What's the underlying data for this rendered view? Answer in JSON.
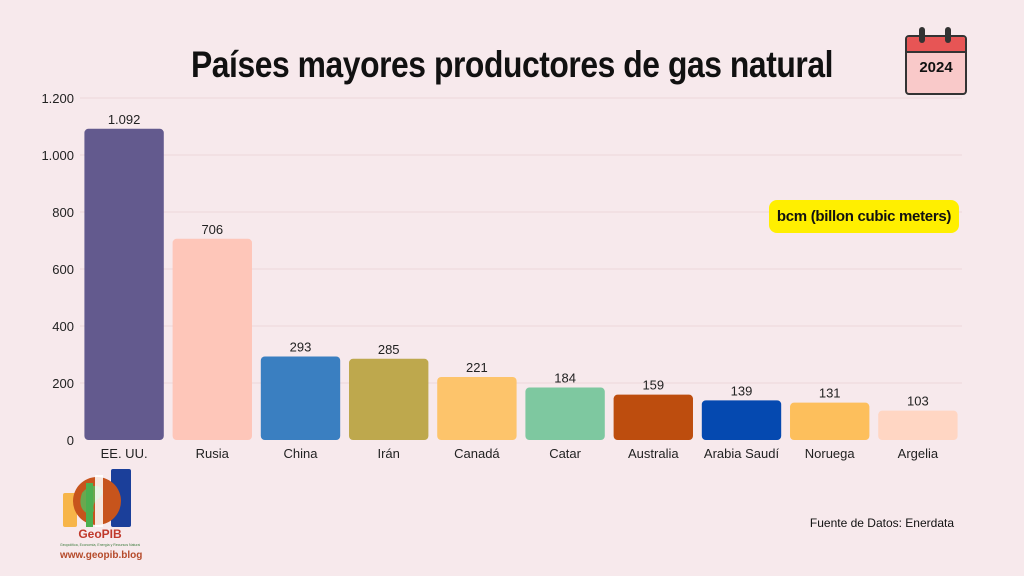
{
  "title": "Países mayores productores de gas natural",
  "year": "2024",
  "unit_label": "bcm (billon cubic meters)",
  "source": "Fuente de Datos: Enerdata",
  "logo": {
    "name": "GeoPIB",
    "tagline": "Geopolítica, Economía, Energía y Recursos Naturales",
    "url": "www.geopib.blog"
  },
  "chart_data": {
    "type": "bar",
    "title": "Países mayores productores de gas natural",
    "xlabel": "",
    "ylabel": "",
    "ylim": [
      0,
      1200
    ],
    "yticks": [
      0,
      200,
      400,
      600,
      800,
      1000,
      1200
    ],
    "ytick_labels": [
      "0",
      "200",
      "400",
      "600",
      "800",
      "1.000",
      "1.200"
    ],
    "grid": true,
    "categories": [
      "EE. UU.",
      "Rusia",
      "China",
      "Irán",
      "Canadá",
      "Catar",
      "Australia",
      "Arabia Saudí",
      "Noruega",
      "Argelia"
    ],
    "values": [
      1092,
      706,
      293,
      285,
      221,
      184,
      159,
      139,
      131,
      103
    ],
    "value_labels": [
      "1.092",
      "706",
      "293",
      "285",
      "221",
      "184",
      "159",
      "139",
      "131",
      "103"
    ],
    "colors": [
      "#635a8e",
      "#fec6b9",
      "#3a7fc1",
      "#bea84d",
      "#fdc46b",
      "#7ec8a0",
      "#bd4d0e",
      "#0549b0",
      "#fdbf5c",
      "#ffd6c3"
    ]
  }
}
